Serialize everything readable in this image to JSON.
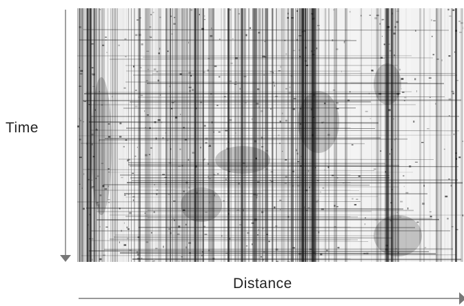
{
  "figure": {
    "y_axis_label": "Time",
    "x_axis_label": "Distance",
    "image_description_icon": "kymograph-image",
    "colors": {
      "axis": "#777777",
      "text": "#222222",
      "dark_band": "#111111",
      "light_band": "#f2f2f2"
    }
  }
}
